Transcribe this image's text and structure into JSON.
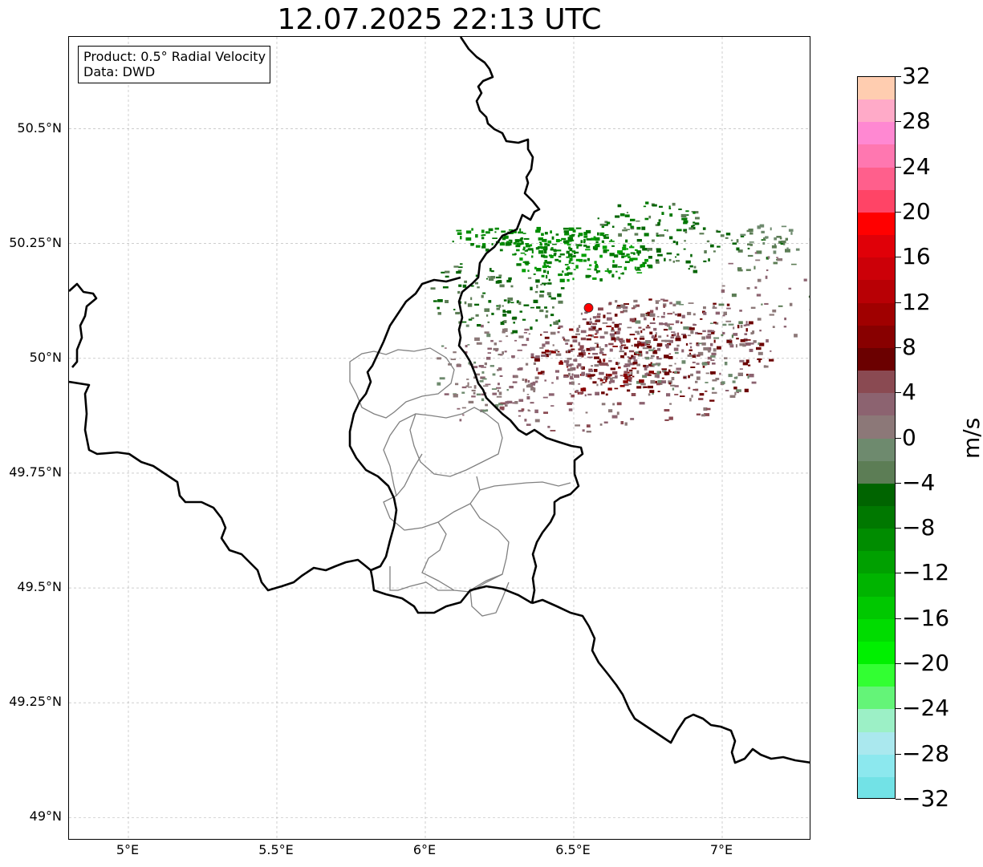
{
  "title": "12.07.2025 22:13 UTC",
  "info_box": {
    "product": "Product: 0.5° Radial Velocity",
    "data_source": "Data: DWD"
  },
  "map": {
    "extent": {
      "lon_min": 4.8,
      "lon_max": 7.3,
      "lat_min": 48.95,
      "lat_max": 50.7
    },
    "gridlines": true,
    "lat_ticks": [
      {
        "value": 50.5,
        "label": "50.5°N"
      },
      {
        "value": 50.25,
        "label": "50.25°N"
      },
      {
        "value": 50.0,
        "label": "50°N"
      },
      {
        "value": 49.75,
        "label": "49.75°N"
      },
      {
        "value": 49.5,
        "label": "49.5°N"
      },
      {
        "value": 49.25,
        "label": "49.25°N"
      },
      {
        "value": 49.0,
        "label": "49°N"
      }
    ],
    "lon_ticks": [
      {
        "value": 5.0,
        "label": "5°E"
      },
      {
        "value": 5.5,
        "label": "5.5°E"
      },
      {
        "value": 6.0,
        "label": "6°E"
      },
      {
        "value": 6.5,
        "label": "6.5°E"
      },
      {
        "value": 7.0,
        "label": "7°E"
      }
    ],
    "radar_site": {
      "lon": 6.55,
      "lat": 50.11,
      "color": "#ff0000"
    },
    "border_color": "#000000",
    "admin_color": "#808080"
  },
  "colorbar": {
    "unit": "m/s",
    "min": -32,
    "max": 32,
    "tick_labels": [
      "32",
      "28",
      "24",
      "20",
      "16",
      "12",
      "8",
      "4",
      "0",
      "−4",
      "−8",
      "−12",
      "−16",
      "−20",
      "−24",
      "−28",
      "−32"
    ],
    "colors_top_to_bottom": [
      "#ffcdb0",
      "#ffaac8",
      "#ff88d2",
      "#ff77b0",
      "#ff5f8c",
      "#ff4466",
      "#ff0000",
      "#e00008",
      "#cc0008",
      "#b80005",
      "#a00000",
      "#880000",
      "#6b0000",
      "#8a4a52",
      "#8c6370",
      "#8c7878",
      "#6e8a6e",
      "#5c7d55",
      "#006400",
      "#007800",
      "#008c00",
      "#00a000",
      "#00b400",
      "#00c800",
      "#00dc00",
      "#00f000",
      "#32ff32",
      "#64f478",
      "#9cf0c6",
      "#aae8ee",
      "#8ce8ee",
      "#72e2e6"
    ]
  }
}
